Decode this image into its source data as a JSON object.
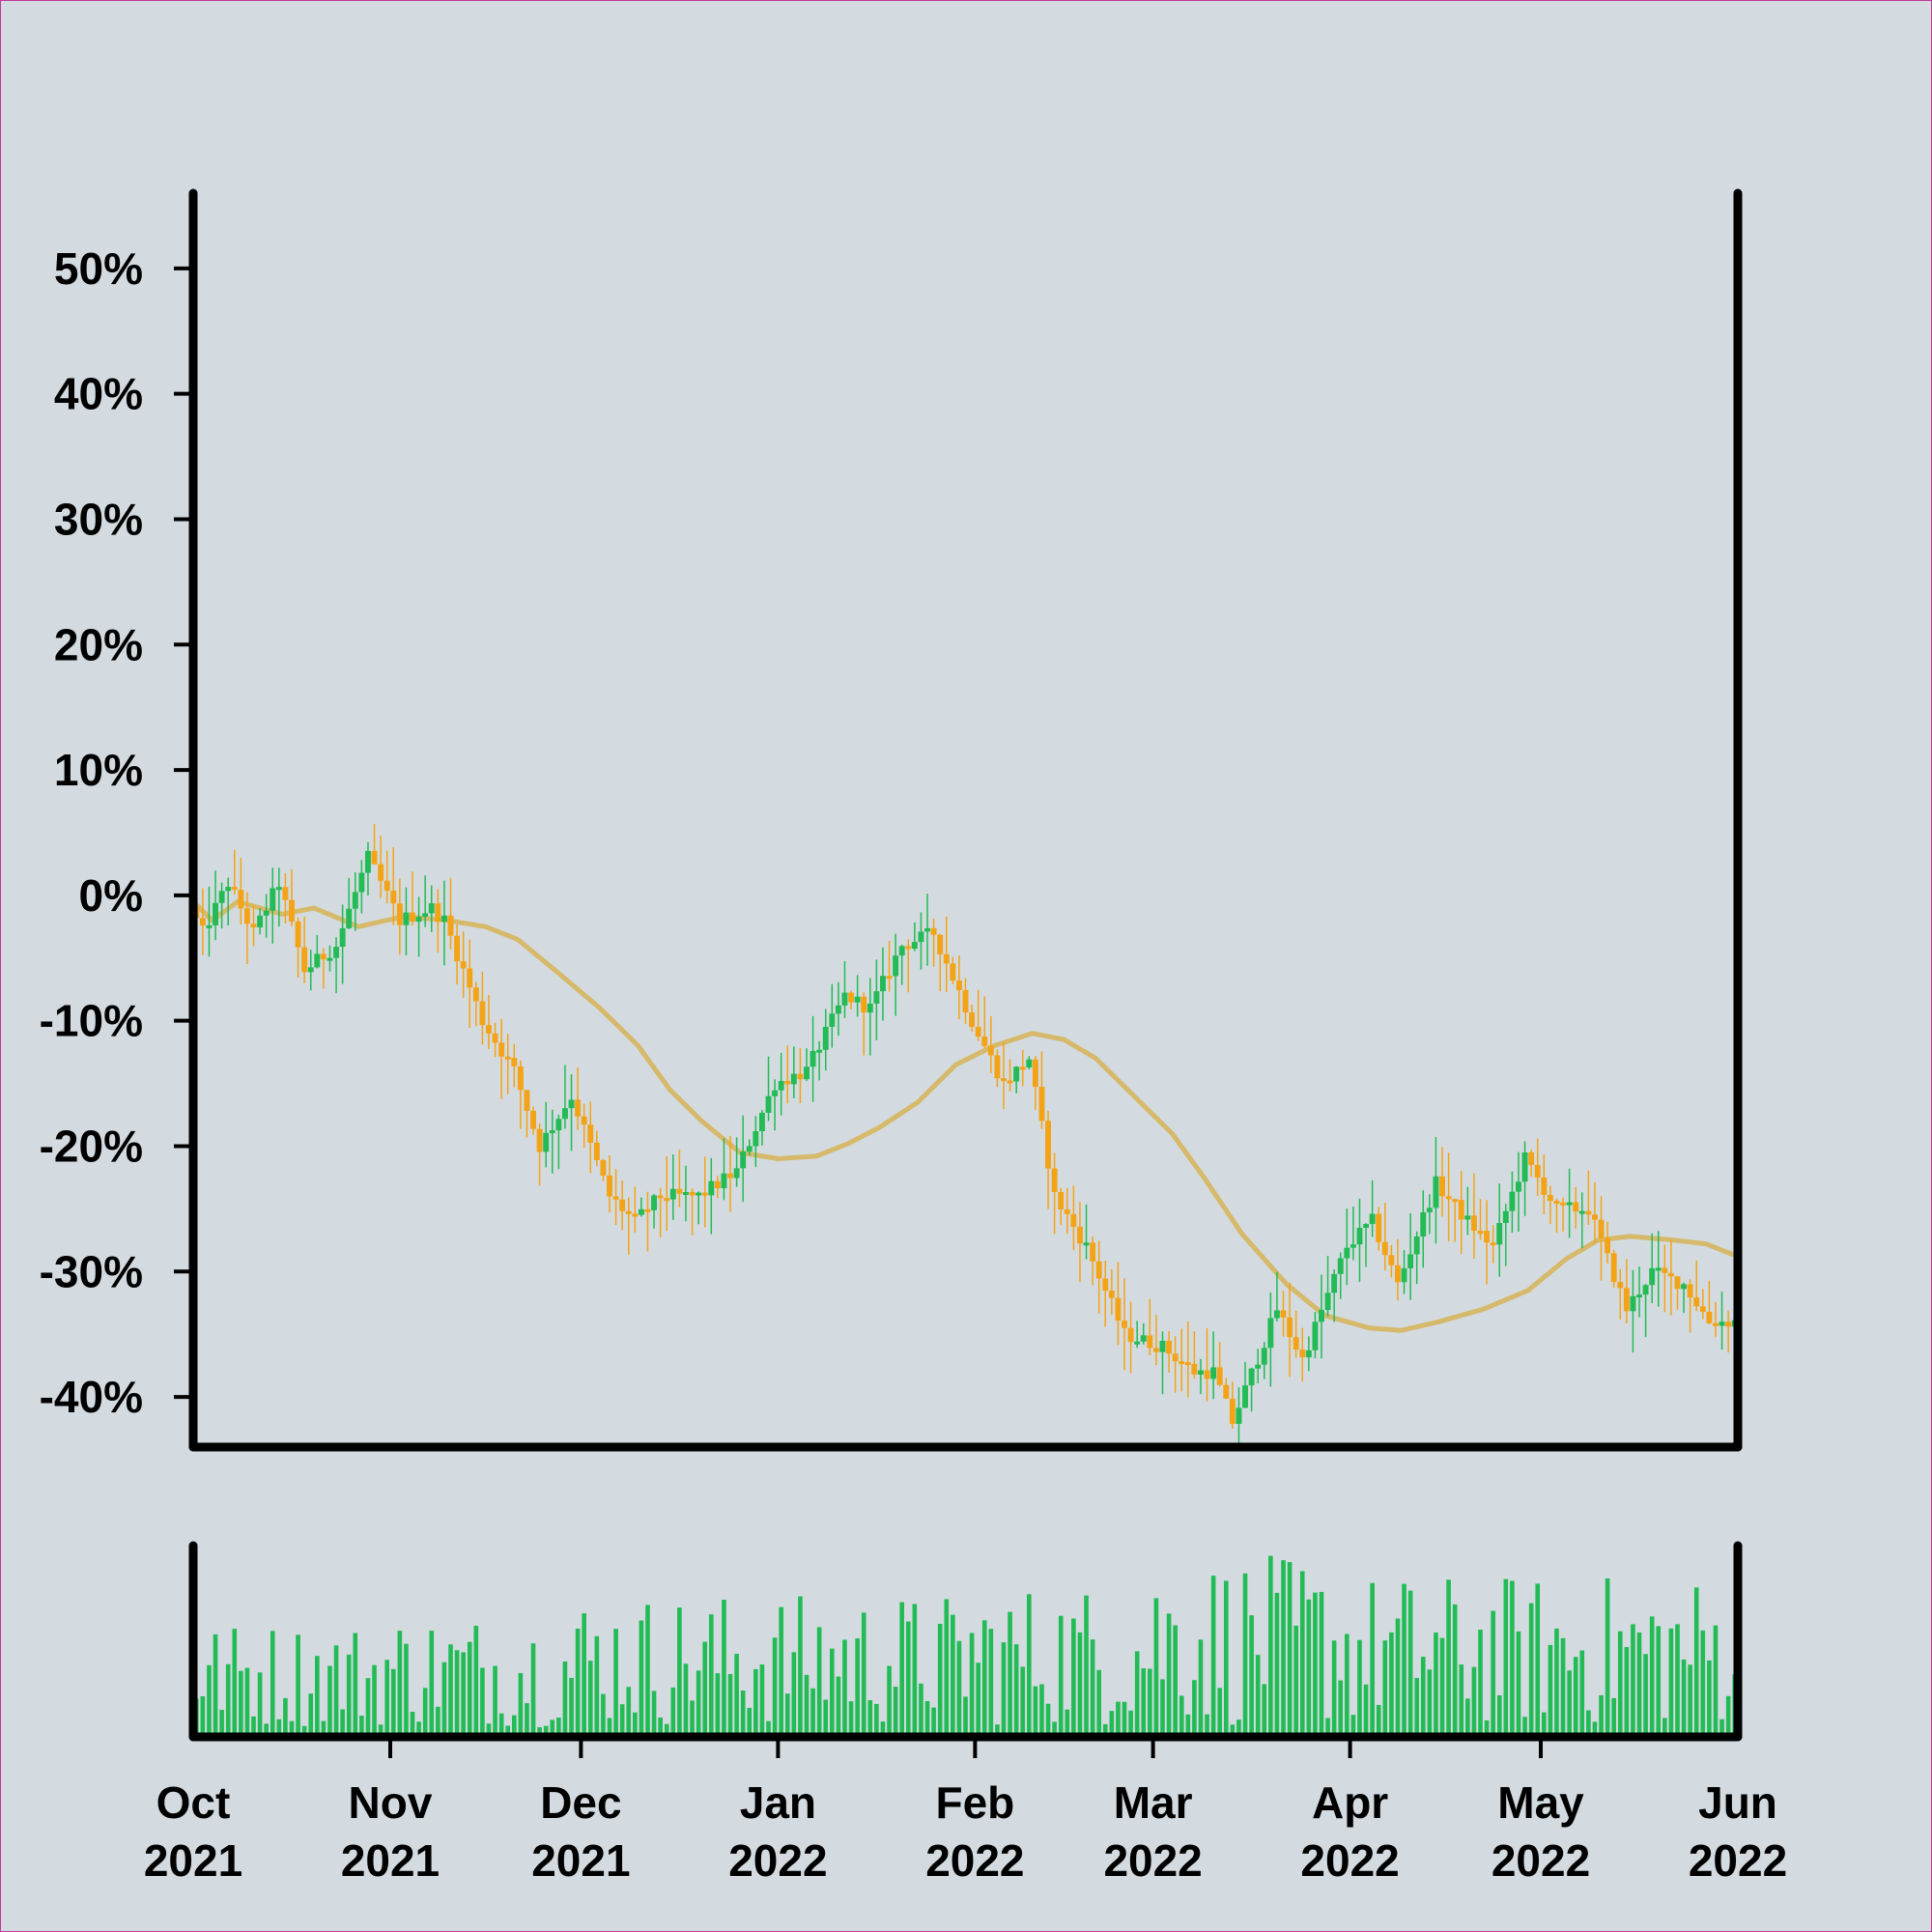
{
  "colors": {
    "background": "#d3dbe0",
    "frame_border": "#c2389a",
    "axis": "#000000",
    "up": "#22bb55",
    "down": "#f5a316",
    "moving_average": "#d6b96a",
    "volume": "#22bb55"
  },
  "chart_data": {
    "type": "candlestick",
    "title": "",
    "xlabel": "",
    "ylabel": "",
    "x_range": [
      "2021-10-01",
      "2022-06-01"
    ],
    "ylim": [
      -44,
      56
    ],
    "grid": false,
    "y_ticks": [
      {
        "value": 50,
        "label": "50%"
      },
      {
        "value": 40,
        "label": "40%"
      },
      {
        "value": 30,
        "label": "30%"
      },
      {
        "value": 20,
        "label": "20%"
      },
      {
        "value": 10,
        "label": "10%"
      },
      {
        "value": 0,
        "label": "0%"
      },
      {
        "value": -10,
        "label": "-10%"
      },
      {
        "value": -20,
        "label": "-20%"
      },
      {
        "value": -30,
        "label": "-30%"
      },
      {
        "value": -40,
        "label": "-40%"
      }
    ],
    "x_ticks": [
      {
        "date": "2021-10-01",
        "month": "Oct",
        "year": "2021"
      },
      {
        "date": "2021-11-01",
        "month": "Nov",
        "year": "2021"
      },
      {
        "date": "2021-12-01",
        "month": "Dec",
        "year": "2021"
      },
      {
        "date": "2022-01-01",
        "month": "Jan",
        "year": "2022"
      },
      {
        "date": "2022-02-01",
        "month": "Feb",
        "year": "2022"
      },
      {
        "date": "2022-03-01",
        "month": "Mar",
        "year": "2022"
      },
      {
        "date": "2022-04-01",
        "month": "Apr",
        "year": "2022"
      },
      {
        "date": "2022-05-01",
        "month": "May",
        "year": "2022"
      },
      {
        "date": "2022-06-01",
        "month": "Jun",
        "year": "2022"
      }
    ],
    "price_path": [
      [
        "2021-10-01",
        -1
      ],
      [
        "2021-10-03",
        -3
      ],
      [
        "2021-10-07",
        1
      ],
      [
        "2021-10-11",
        -3
      ],
      [
        "2021-10-15",
        1
      ],
      [
        "2021-10-19",
        -6
      ],
      [
        "2021-10-24",
        -4
      ],
      [
        "2021-10-29",
        3
      ],
      [
        "2021-11-03",
        -2
      ],
      [
        "2021-11-08",
        -1
      ],
      [
        "2021-11-10",
        -2
      ],
      [
        "2021-11-16",
        -10
      ],
      [
        "2021-11-21",
        -14
      ],
      [
        "2021-11-25",
        -20
      ],
      [
        "2021-11-30",
        -16
      ],
      [
        "2021-12-06",
        -24
      ],
      [
        "2021-12-10",
        -26
      ],
      [
        "2021-12-14",
        -24
      ],
      [
        "2021-12-20",
        -24
      ],
      [
        "2021-12-26",
        -22
      ],
      [
        "2022-01-01",
        -15
      ],
      [
        "2022-01-06",
        -14
      ],
      [
        "2022-01-12",
        -8
      ],
      [
        "2022-01-16",
        -9
      ],
      [
        "2022-01-21",
        -4
      ],
      [
        "2022-01-26",
        -3
      ],
      [
        "2022-02-01",
        -10
      ],
      [
        "2022-02-06",
        -15
      ],
      [
        "2022-02-10",
        -13
      ],
      [
        "2022-02-14",
        -24
      ],
      [
        "2022-02-19",
        -28
      ],
      [
        "2022-02-25",
        -35
      ],
      [
        "2022-03-03",
        -36
      ],
      [
        "2022-03-08",
        -38
      ],
      [
        "2022-03-11",
        -38
      ],
      [
        "2022-03-14",
        -42
      ],
      [
        "2022-03-21",
        -33
      ],
      [
        "2022-03-25",
        -37
      ],
      [
        "2022-04-01",
        -28
      ],
      [
        "2022-04-05",
        -26
      ],
      [
        "2022-04-09",
        -31
      ],
      [
        "2022-04-15",
        -23
      ],
      [
        "2022-04-20",
        -26
      ],
      [
        "2022-04-24",
        -28
      ],
      [
        "2022-04-29",
        -21
      ],
      [
        "2022-05-04",
        -25
      ],
      [
        "2022-05-09",
        -25
      ],
      [
        "2022-05-15",
        -33
      ],
      [
        "2022-05-19",
        -30
      ],
      [
        "2022-05-24",
        -31
      ],
      [
        "2022-05-28",
        -34
      ],
      [
        "2022-06-01",
        -34
      ]
    ],
    "moving_average": [
      [
        "2021-10-01",
        -0.5
      ],
      [
        "2021-10-04",
        -2
      ],
      [
        "2021-10-08",
        -0.5
      ],
      [
        "2021-10-15",
        -1.5
      ],
      [
        "2021-10-20",
        -1
      ],
      [
        "2021-10-27",
        -2.5
      ],
      [
        "2021-11-03",
        -1.7
      ],
      [
        "2021-11-10",
        -2
      ],
      [
        "2021-11-16",
        -2.5
      ],
      [
        "2021-11-21",
        -3.5
      ],
      [
        "2021-11-27",
        -6
      ],
      [
        "2021-12-04",
        -9
      ],
      [
        "2021-12-10",
        -12
      ],
      [
        "2021-12-15",
        -15.5
      ],
      [
        "2021-12-20",
        -18
      ],
      [
        "2021-12-26",
        -20.5
      ],
      [
        "2022-01-01",
        -21
      ],
      [
        "2022-01-07",
        -20.8
      ],
      [
        "2022-01-12",
        -19.8
      ],
      [
        "2022-01-17",
        -18.5
      ],
      [
        "2022-01-23",
        -16.5
      ],
      [
        "2022-01-29",
        -13.5
      ],
      [
        "2022-02-04",
        -12
      ],
      [
        "2022-02-10",
        -11
      ],
      [
        "2022-02-15",
        -11.5
      ],
      [
        "2022-02-20",
        -13
      ],
      [
        "2022-02-25",
        -15.5
      ],
      [
        "2022-03-04",
        -19
      ],
      [
        "2022-03-09",
        -22.5
      ],
      [
        "2022-03-15",
        -27
      ],
      [
        "2022-03-22",
        -31
      ],
      [
        "2022-03-28",
        -33.5
      ],
      [
        "2022-04-04",
        -34.5
      ],
      [
        "2022-04-09",
        -34.7
      ],
      [
        "2022-04-15",
        -34
      ],
      [
        "2022-04-22",
        -33
      ],
      [
        "2022-04-29",
        -31.5
      ],
      [
        "2022-05-05",
        -29
      ],
      [
        "2022-05-10",
        -27.5
      ],
      [
        "2022-05-15",
        -27.2
      ],
      [
        "2022-05-22",
        -27.5
      ],
      [
        "2022-05-27",
        -27.8
      ],
      [
        "2022-06-01",
        -28.8
      ]
    ],
    "volume": {
      "ylim": [
        0,
        100
      ],
      "ranges": [
        [
          "2021-10-01",
          5,
          60
        ],
        [
          "2021-11-01",
          5,
          65
        ],
        [
          "2021-12-01",
          5,
          75
        ],
        [
          "2022-01-01",
          5,
          75
        ],
        [
          "2022-02-01",
          5,
          80
        ],
        [
          "2022-03-01",
          5,
          95
        ],
        [
          "2022-04-01",
          5,
          85
        ],
        [
          "2022-05-01",
          5,
          85
        ],
        [
          "2022-06-01",
          5,
          80
        ]
      ]
    }
  }
}
